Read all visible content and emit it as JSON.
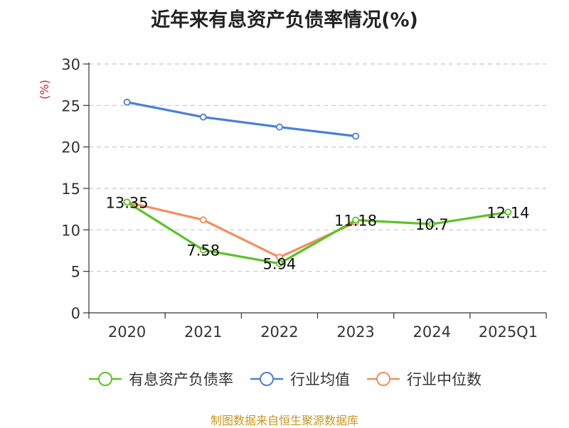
{
  "chart_data": {
    "type": "line",
    "title": "近年来有息资产负债率情况(%)",
    "ylabel": "(%)",
    "xlabel": "",
    "categories": [
      "2020",
      "2021",
      "2022",
      "2023",
      "2024",
      "2025Q1"
    ],
    "ylim": [
      0,
      30
    ],
    "yticks": [
      0,
      5,
      10,
      15,
      20,
      25,
      30
    ],
    "grid": true,
    "legend_position": "bottom",
    "series": [
      {
        "name": "有息资产负债率",
        "color": "#5cc226",
        "values": [
          13.35,
          7.58,
          5.94,
          11.18,
          10.7,
          12.14
        ],
        "labels": [
          "13.35",
          "7.58",
          "5.94",
          "11.18",
          "10.7",
          "12.14"
        ]
      },
      {
        "name": "行业均值",
        "color": "#4a7fd8",
        "values": [
          25.4,
          23.6,
          22.4,
          21.3,
          null,
          null
        ]
      },
      {
        "name": "行业中位数",
        "color": "#f58c5c",
        "values": [
          13.35,
          11.2,
          6.7,
          10.9,
          null,
          null
        ]
      }
    ]
  },
  "source": "制图数据来自恒生聚源数据库"
}
